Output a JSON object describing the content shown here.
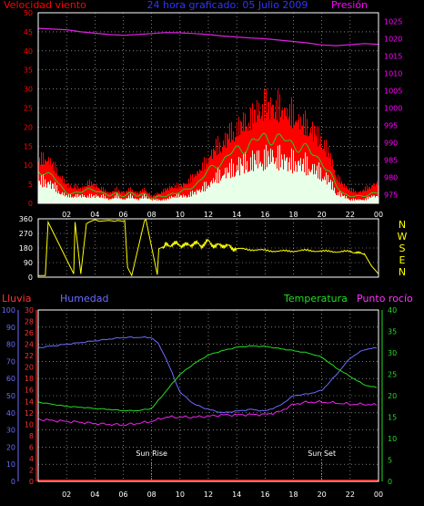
{
  "header": {
    "wind_label": "Velocidad viento",
    "title": "24 hora graficado: 05 Julio 2009",
    "pressure_label": "Presión"
  },
  "bottom_header": {
    "rain_label": "Lluvia",
    "humidity_label": "Humedad",
    "temperature_label": "Temperatura",
    "dewpoint_label": "Punto rocío"
  },
  "annotations": {
    "sun_rise": "Sun Rise",
    "sun_set": "Sun Set"
  },
  "colors": {
    "wind_gust": "#ff0000",
    "wind_avg": "#22cc22",
    "wind_base": "#e8ffe8",
    "pressure": "#e020e0",
    "direction": "#ffff00",
    "humidity": "#6b6bff",
    "temperature": "#22dd22",
    "dewpoint": "#ee22ee",
    "rain": "#ff0000",
    "grid": "#c8c8c8",
    "wind_axis": "#ff0000",
    "pressure_axis": "#ff00ff"
  },
  "chart_data": [
    {
      "type": "area",
      "name": "wind",
      "x_ticks": [
        "02",
        "04",
        "06",
        "08",
        "10",
        "12",
        "14",
        "16",
        "18",
        "20",
        "22",
        "00"
      ],
      "x_range_hours": [
        0,
        24
      ],
      "y_left": {
        "ticks": [
          "0",
          "5",
          "10",
          "15",
          "20",
          "25",
          "30",
          "35",
          "40",
          "45",
          "50"
        ],
        "range": [
          0,
          50
        ]
      },
      "y_right": {
        "ticks": [
          "975",
          "980",
          "985",
          "990",
          "995",
          "1000",
          "1005",
          "1010",
          "1015",
          "1020",
          "1025"
        ],
        "range": [
          972.5,
          1027.5
        ]
      },
      "grid": true,
      "series": [
        {
          "x": [
            0,
            0.5,
            1,
            1.5,
            2,
            2.5,
            3,
            3.5,
            4,
            4.5,
            5,
            5.5,
            6,
            6.5,
            7,
            7.5,
            8,
            8.5,
            9,
            9.5,
            10,
            10.5,
            11,
            11.5,
            12,
            12.5,
            13,
            13.5,
            14,
            14.5,
            15,
            15.5,
            16,
            16.5,
            17,
            17.5,
            18,
            18.5,
            19,
            19.5,
            20,
            20.5,
            21,
            21.5,
            22,
            22.5,
            23,
            23.5,
            24
          ],
          "values": [
            12,
            13,
            11,
            8,
            5,
            5,
            4,
            6,
            5,
            4,
            3,
            4,
            3,
            4,
            3,
            4,
            2,
            3,
            4,
            5,
            5,
            6,
            8,
            10,
            13,
            16,
            17,
            20,
            21,
            23,
            24,
            27,
            28,
            28,
            27,
            26,
            25,
            23,
            22,
            20,
            18,
            14,
            8,
            5,
            4,
            3,
            4,
            5,
            6
          ]
        },
        {
          "x": [
            0,
            0.5,
            1,
            1.5,
            2,
            2.5,
            3,
            3.5,
            4,
            4.5,
            5,
            5.5,
            6,
            6.5,
            7,
            7.5,
            8,
            8.5,
            9,
            9.5,
            10,
            10.5,
            11,
            11.5,
            12,
            12.5,
            13,
            13.5,
            14,
            14.5,
            15,
            15.5,
            16,
            16.5,
            17,
            17.5,
            18,
            18.5,
            19,
            19.5,
            20,
            20.5,
            21,
            21.5,
            22,
            22.5,
            23,
            23.5,
            24
          ],
          "values": [
            9,
            9,
            8,
            5,
            3,
            3,
            3,
            4,
            4,
            3,
            2,
            3,
            2,
            3,
            2,
            3,
            1,
            2,
            2,
            3,
            3,
            4,
            5,
            7,
            9,
            11,
            12,
            14,
            15,
            16,
            17,
            18,
            19,
            19,
            18,
            18,
            17,
            16,
            15,
            14,
            12,
            9,
            5,
            3,
            2,
            2,
            2,
            3,
            3
          ]
        },
        {
          "x": [
            0,
            0.5,
            1,
            1.5,
            2,
            2.5,
            3,
            3.5,
            4,
            4.5,
            5,
            5.5,
            6,
            6.5,
            7,
            7.5,
            8,
            8.5,
            9,
            9.5,
            10,
            10.5,
            11,
            11.5,
            12,
            12.5,
            13,
            13.5,
            14,
            14.5,
            15,
            15.5,
            16,
            16.5,
            17,
            17.5,
            18,
            18.5,
            19,
            19.5,
            20,
            20.5,
            21,
            21.5,
            22,
            22.5,
            23,
            23.5,
            24
          ],
          "values": [
            6,
            6,
            5,
            3,
            2,
            2,
            2,
            2,
            2,
            2,
            1,
            2,
            1,
            2,
            1,
            2,
            1,
            1,
            1,
            2,
            2,
            2,
            3,
            4,
            5,
            7,
            8,
            9,
            10,
            11,
            11,
            12,
            12,
            13,
            12,
            12,
            11,
            11,
            10,
            9,
            8,
            6,
            3,
            2,
            1,
            1,
            1,
            2,
            2
          ]
        },
        {
          "name": "Presión",
          "x": [
            0,
            1,
            2,
            3,
            4,
            5,
            6,
            7,
            8,
            9,
            10,
            11,
            12,
            13,
            14,
            15,
            16,
            17,
            18,
            19,
            20,
            21,
            22,
            23,
            24
          ],
          "values": [
            1023,
            1022.8,
            1022.6,
            1022,
            1021.6,
            1021.2,
            1021,
            1021.2,
            1021.5,
            1021.8,
            1021.7,
            1021.5,
            1021.2,
            1020.8,
            1020.5,
            1020.2,
            1020,
            1019.6,
            1019.2,
            1018.8,
            1018.2,
            1018,
            1018.3,
            1018.6,
            1018.4
          ]
        }
      ]
    },
    {
      "type": "line",
      "name": "wind direction",
      "y_left": {
        "ticks": [
          "0",
          "90",
          "180",
          "270",
          "360"
        ],
        "range": [
          0,
          360
        ]
      },
      "y_right_labels": [
        "N",
        "W",
        "S",
        "E",
        "N"
      ],
      "series": [
        {
          "x": [
            0,
            0.5,
            0.7,
            2.5,
            2.6,
            3,
            3.4,
            3.6,
            4,
            4.3,
            5,
            5.4,
            5.6,
            6,
            6.1,
            6.3,
            6.6,
            7.5,
            7.6,
            8.4,
            8.5,
            8.8,
            9,
            9.5,
            10,
            10.5,
            11,
            11.5,
            12,
            12.5,
            13,
            13.5,
            14,
            15,
            16,
            17,
            18,
            19,
            20,
            21,
            22,
            22.5,
            23,
            23.5,
            24
          ],
          "values": [
            10,
            10,
            340,
            20,
            340,
            20,
            330,
            340,
            355,
            345,
            350,
            345,
            350,
            345,
            350,
            60,
            10,
            350,
            355,
            15,
            175,
            190,
            195,
            205,
            200,
            195,
            210,
            195,
            220,
            190,
            200,
            185,
            175,
            170,
            165,
            160,
            162,
            165,
            160,
            158,
            158,
            150,
            145,
            70,
            20
          ]
        }
      ]
    },
    {
      "type": "line",
      "name": "humidity temperature",
      "y_left": {
        "ticks": [
          "0",
          "10",
          "20",
          "30",
          "40",
          "50",
          "60",
          "70",
          "80",
          "90",
          "100"
        ],
        "range": [
          0,
          100
        ]
      },
      "y_left_inner": {
        "ticks": [
          "0",
          "2",
          "4",
          "6",
          "8",
          "10",
          "12",
          "14",
          "16",
          "18",
          "20",
          "22",
          "24",
          "26",
          "28",
          "30"
        ],
        "range": [
          0,
          30
        ]
      },
      "y_right": {
        "ticks": [
          "0",
          "5",
          "10",
          "15",
          "20",
          "25",
          "30",
          "35",
          "40"
        ],
        "range": [
          0,
          40
        ]
      },
      "grid": true,
      "series": [
        {
          "name": "Humedad",
          "x": [
            0,
            1,
            2,
            3,
            4,
            5,
            6,
            7,
            8,
            8.5,
            9,
            9.5,
            10,
            11,
            12,
            13,
            14,
            15,
            16,
            17,
            18,
            19,
            20,
            21,
            22,
            23,
            24
          ],
          "values": [
            78,
            79,
            80,
            81,
            82,
            83,
            84,
            84,
            84,
            80,
            72,
            62,
            52,
            45,
            42,
            40,
            41,
            42,
            41,
            44,
            50,
            51,
            53,
            62,
            72,
            77,
            78
          ]
        },
        {
          "name": "Temperatura",
          "x": [
            0,
            1,
            2,
            3,
            4,
            5,
            6,
            7,
            8,
            8.5,
            9,
            9.5,
            10,
            11,
            12,
            13,
            14,
            15,
            16,
            17,
            18,
            19,
            20,
            21,
            22,
            23,
            24
          ],
          "values": [
            18.5,
            18,
            17.5,
            17.3,
            17,
            16.8,
            16.5,
            16.5,
            17,
            19,
            21,
            23,
            25,
            27.5,
            29.5,
            30.5,
            31.3,
            31.6,
            31.5,
            31,
            30.5,
            30,
            29,
            26.5,
            24.5,
            22.5,
            21.8
          ]
        },
        {
          "name": "Punto rocío",
          "x": [
            0,
            1,
            2,
            3,
            4,
            5,
            6,
            7,
            8,
            9,
            10,
            11,
            12,
            13,
            14,
            15,
            16,
            17,
            18,
            19,
            20,
            21,
            22,
            23,
            24
          ],
          "values": [
            14.5,
            14.2,
            14,
            13.8,
            13.5,
            13.3,
            13.2,
            13.5,
            14,
            15,
            15,
            15,
            15.2,
            15.5,
            15.5,
            15.6,
            15.6,
            16.2,
            18,
            18.5,
            18.5,
            18.3,
            18,
            18,
            17.8
          ]
        },
        {
          "name": "Lluvia",
          "x": [
            0,
            24
          ],
          "values": [
            0,
            0
          ]
        }
      ]
    }
  ]
}
